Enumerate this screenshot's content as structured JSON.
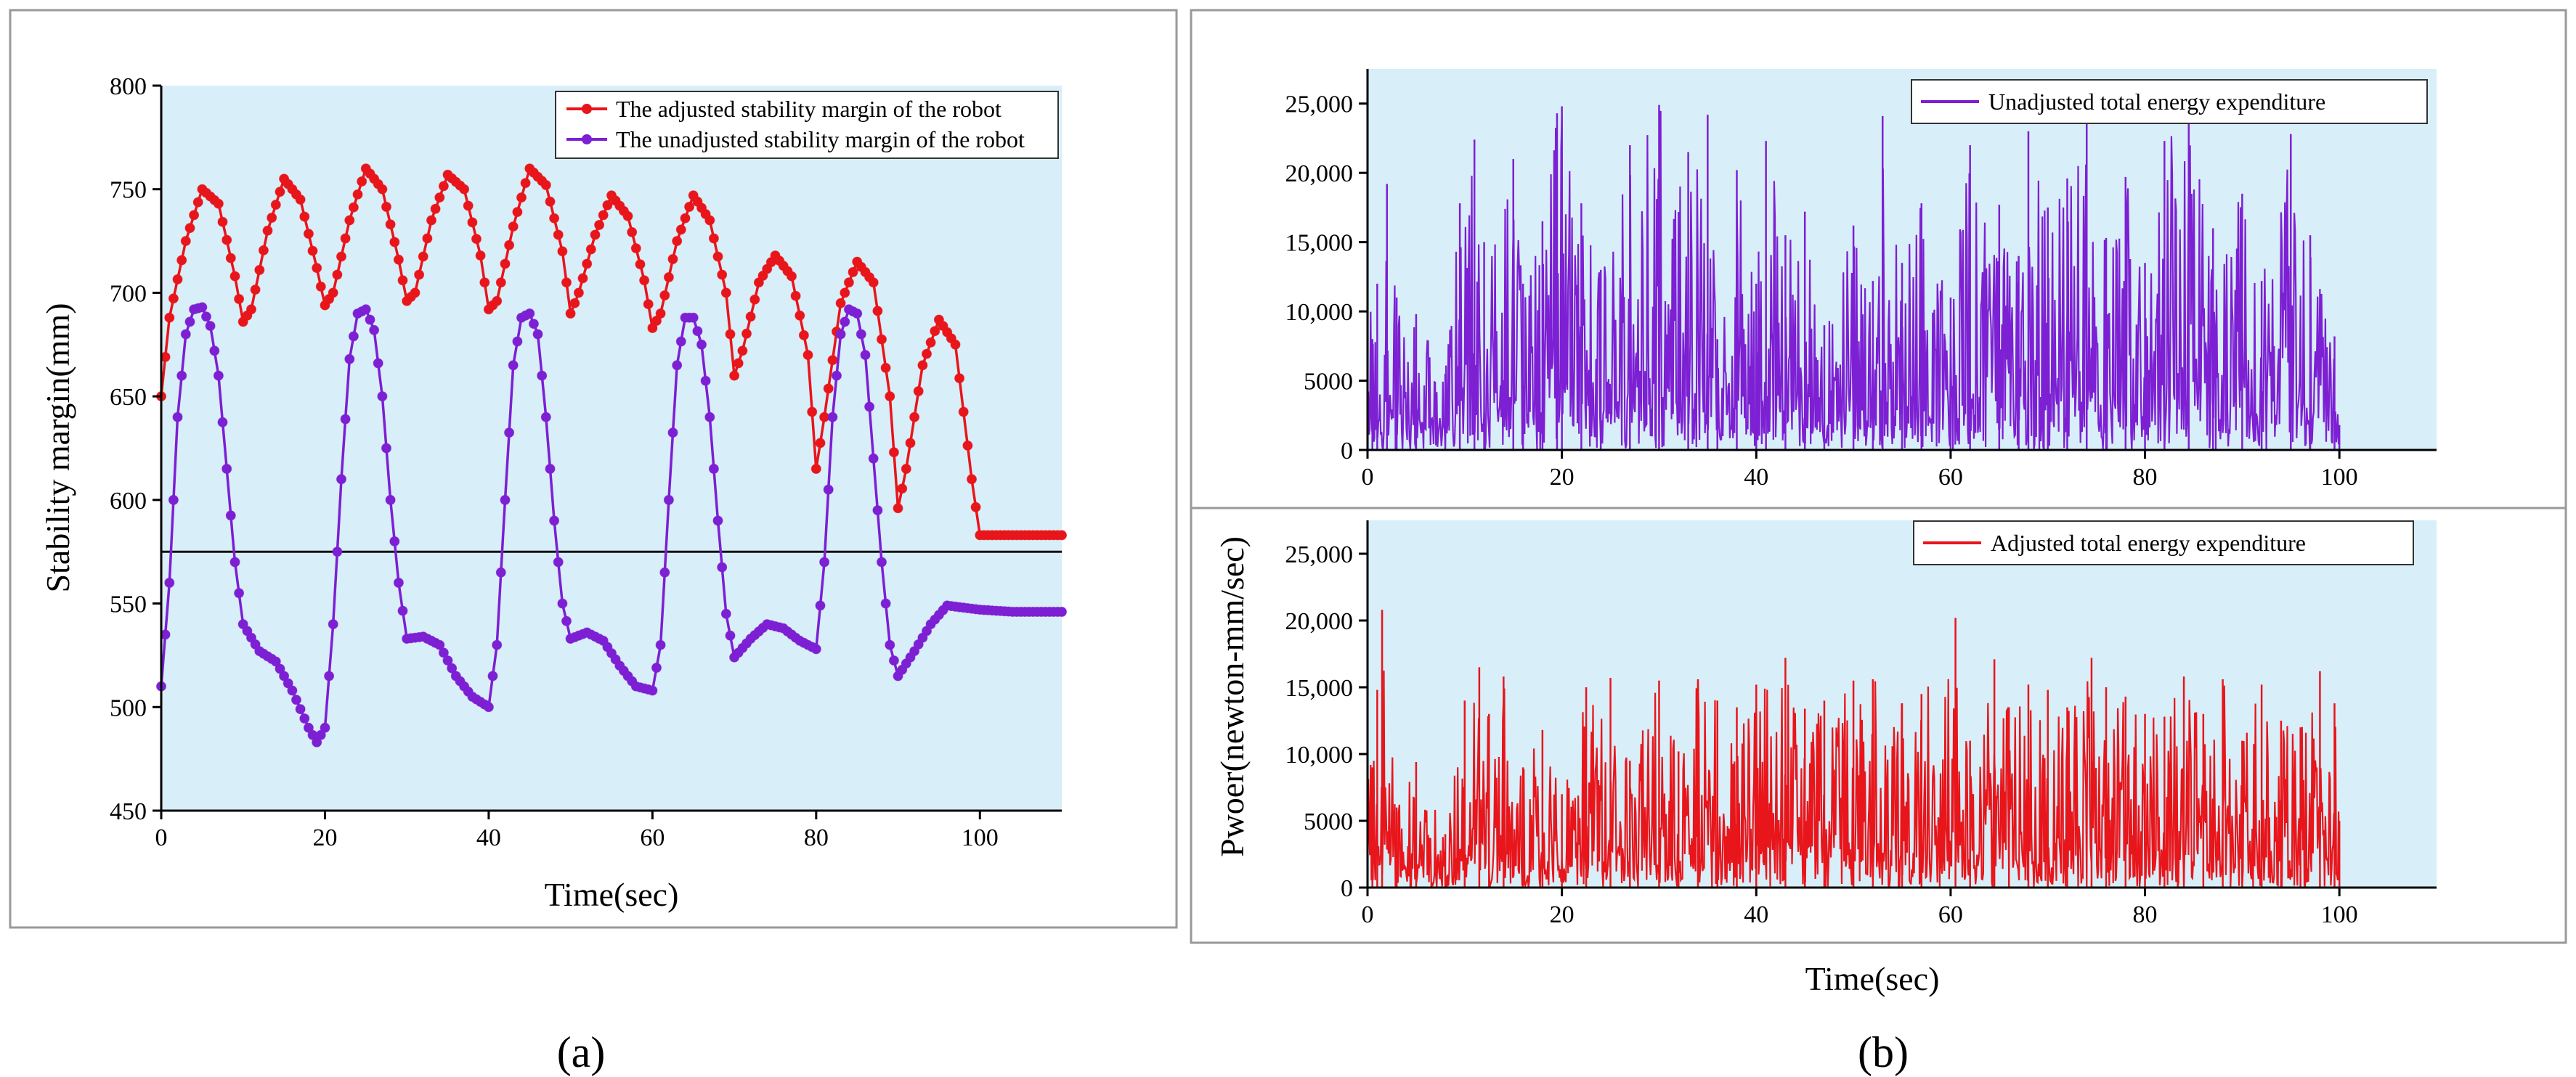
{
  "colors": {
    "plot_bg": "#d8eef8",
    "adjusted": "#e8151b",
    "unadjusted": "#7d1fd3",
    "hline": "#111111"
  },
  "panel_labels": [
    "(a)",
    "(b)"
  ],
  "chart_data": [
    {
      "id": "a",
      "type": "line",
      "markers": true,
      "title": "",
      "xlabel": "Time(sec)",
      "ylabel": "Stability margin(mm)",
      "xlim": [
        0,
        110
      ],
      "ylim": [
        450,
        800
      ],
      "xticks": [
        0,
        20,
        40,
        60,
        80,
        100
      ],
      "yticks": [
        450,
        500,
        550,
        600,
        650,
        700,
        750,
        800
      ],
      "reference_line_y": 575,
      "legend_position": "top-right",
      "series": [
        {
          "name": "The adjusted stability margin of the robot",
          "color_key": "adjusted",
          "x": [
            0,
            1,
            3,
            5,
            7,
            9,
            10,
            11,
            13,
            15,
            17,
            19,
            20,
            21,
            23,
            25,
            27,
            29,
            30,
            31,
            33,
            35,
            37,
            39,
            40,
            41,
            43,
            45,
            47,
            49,
            50,
            51,
            53,
            55,
            57,
            59,
            60,
            61,
            63,
            65,
            67,
            69,
            70,
            71,
            73,
            75,
            77,
            79,
            80,
            81,
            83,
            85,
            87,
            89,
            90,
            91,
            93,
            95,
            97,
            99,
            100,
            103,
            106,
            110
          ],
          "y": [
            650,
            688,
            725,
            750,
            743,
            708,
            686,
            692,
            730,
            755,
            745,
            712,
            694,
            700,
            735,
            760,
            750,
            716,
            696,
            700,
            735,
            757,
            750,
            718,
            692,
            696,
            732,
            760,
            752,
            720,
            690,
            700,
            728,
            747,
            737,
            706,
            683,
            690,
            725,
            747,
            735,
            700,
            660,
            672,
            705,
            718,
            708,
            670,
            615,
            640,
            695,
            715,
            705,
            650,
            596,
            615,
            665,
            687,
            675,
            610,
            583,
            583,
            583,
            583
          ]
        },
        {
          "name": "The unadjusted stability margin of the robot",
          "color_key": "unadjusted",
          "x": [
            0,
            1,
            2,
            3,
            4,
            5,
            6,
            7,
            8,
            9,
            10,
            12,
            14,
            16,
            18,
            19,
            20,
            21,
            22,
            23,
            24,
            25,
            26,
            27,
            28,
            29,
            30,
            32,
            34,
            36,
            38,
            40,
            41,
            42,
            43,
            44,
            45,
            46,
            47,
            48,
            49,
            50,
            52,
            54,
            56,
            58,
            60,
            61,
            62,
            63,
            64,
            65,
            66,
            67,
            68,
            69,
            70,
            72,
            74,
            76,
            78,
            80,
            81,
            82,
            83,
            84,
            85,
            86,
            87,
            88,
            89,
            90,
            92,
            94,
            96,
            98,
            100,
            104,
            110
          ],
          "y": [
            510,
            560,
            640,
            680,
            692,
            693,
            684,
            660,
            615,
            570,
            540,
            527,
            522,
            508,
            490,
            483,
            490,
            540,
            610,
            668,
            690,
            692,
            682,
            650,
            600,
            560,
            533,
            534,
            530,
            515,
            505,
            500,
            530,
            600,
            665,
            688,
            690,
            680,
            640,
            590,
            550,
            533,
            536,
            532,
            520,
            510,
            508,
            530,
            600,
            665,
            688,
            688,
            675,
            640,
            590,
            545,
            524,
            533,
            540,
            538,
            532,
            528,
            570,
            640,
            680,
            692,
            690,
            670,
            620,
            570,
            530,
            515,
            527,
            540,
            549,
            548,
            547,
            546,
            546
          ]
        }
      ]
    },
    {
      "id": "b-top",
      "type": "line",
      "title": "",
      "xlabel": "",
      "ylabel": "",
      "xlim": [
        0,
        110
      ],
      "ylim": [
        0,
        27500
      ],
      "xticks": [
        0,
        20,
        40,
        60,
        80,
        100
      ],
      "yticks": [
        0,
        5000,
        10000,
        15000,
        20000,
        25000
      ],
      "ytick_labels": [
        "0",
        "5000",
        "10,000",
        "15,000",
        "20,000",
        "25,000"
      ],
      "legend_position": "top-right",
      "series": [
        {
          "name": "Unadjusted total energy expenditure",
          "color_key": "unadjusted",
          "x": [
            0,
            0.5,
            1,
            2,
            3,
            5,
            8,
            9.5,
            11,
            12,
            15,
            16,
            18,
            19.5,
            20,
            22,
            24,
            27,
            30,
            33,
            35,
            36,
            38,
            40,
            41,
            43,
            45,
            47,
            50,
            52,
            53,
            55,
            57,
            60,
            62,
            65,
            67,
            68,
            70,
            72,
            74,
            76,
            78,
            80,
            82,
            84.5,
            87,
            90,
            92,
            95,
            97,
            99.5,
            100,
            110
          ],
          "y": [
            14000,
            8000,
            12000,
            19200,
            11000,
            9800,
            5500,
            17800,
            22400,
            15000,
            21000,
            12000,
            16500,
            24300,
            24800,
            17800,
            13000,
            22000,
            24900,
            21500,
            24200,
            8000,
            20200,
            12000,
            22300,
            15500,
            17200,
            9000,
            16200,
            12200,
            24100,
            13500,
            17800,
            11000,
            22000,
            17700,
            14000,
            23000,
            17500,
            19600,
            23800,
            15300,
            19700,
            13500,
            22300,
            23600,
            16000,
            18500,
            12200,
            22800,
            15500,
            8200,
            1800,
            0
          ]
        }
      ]
    },
    {
      "id": "b-bottom",
      "type": "line",
      "title": "",
      "xlabel": "Time(sec)",
      "ylabel": "Pwoer(newton-mm/sec)",
      "xlim": [
        0,
        110
      ],
      "ylim": [
        0,
        27500
      ],
      "xticks": [
        0,
        20,
        40,
        60,
        80,
        100
      ],
      "yticks": [
        0,
        5000,
        10000,
        15000,
        20000,
        25000
      ],
      "ytick_labels": [
        "0",
        "5000",
        "10,000",
        "15,000",
        "20,000",
        "25,000"
      ],
      "legend_position": "top-right",
      "series": [
        {
          "name": "Adjusted total energy expenditure",
          "color_key": "adjusted",
          "x": [
            0,
            0.5,
            1,
            1.5,
            3,
            5,
            8,
            10,
            11.5,
            12.5,
            14,
            16,
            18,
            20,
            22.5,
            25,
            27,
            30,
            32,
            34,
            36,
            38,
            40,
            43,
            45,
            47,
            50,
            52,
            55,
            57,
            60.5,
            62,
            64.5,
            66,
            68,
            70,
            72,
            74.5,
            76,
            78,
            80,
            82,
            84,
            86,
            88,
            90,
            92,
            94,
            96,
            98,
            99.5,
            100,
            110
          ],
          "y": [
            15000,
            9000,
            14800,
            20800,
            6000,
            9400,
            4000,
            14000,
            16500,
            13000,
            15800,
            9000,
            11800,
            7000,
            15000,
            15700,
            9500,
            15500,
            10200,
            15600,
            14000,
            13500,
            15200,
            17200,
            13400,
            14000,
            15500,
            15600,
            13800,
            14500,
            20200,
            11000,
            17100,
            13500,
            15200,
            14800,
            13500,
            17200,
            15000,
            14300,
            13000,
            12800,
            15800,
            13000,
            15600,
            11000,
            15200,
            12500,
            12000,
            16200,
            13800,
            5000,
            0
          ]
        }
      ]
    }
  ]
}
